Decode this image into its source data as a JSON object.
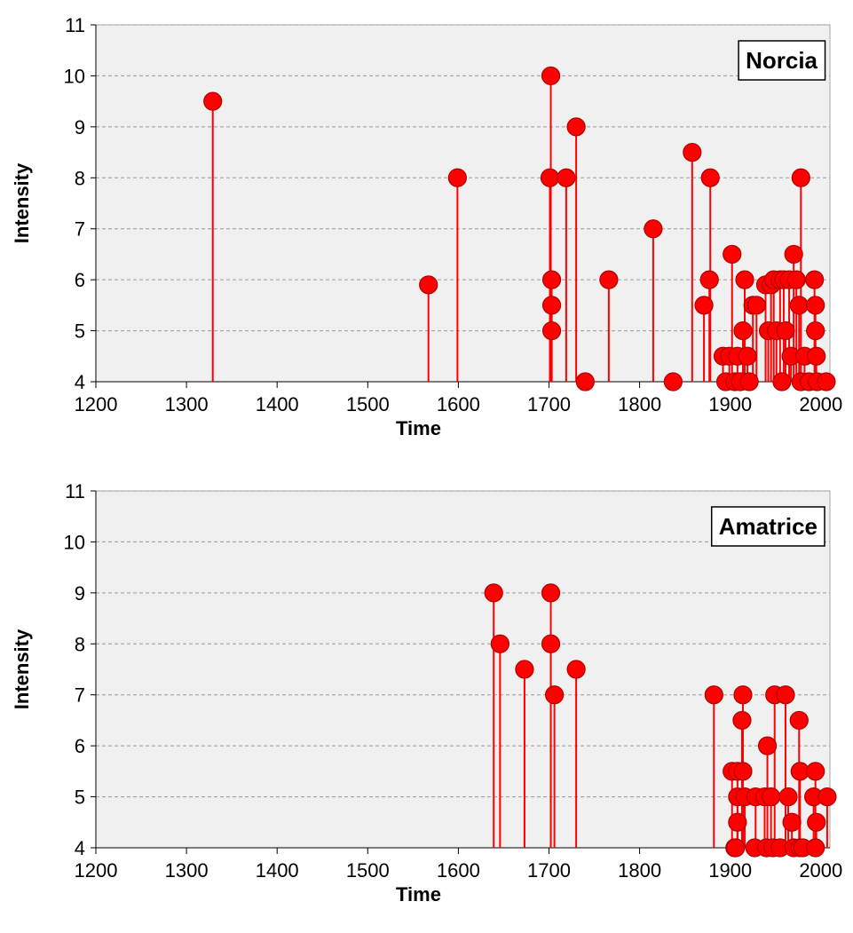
{
  "chart_data": [
    {
      "type": "stem",
      "title": "Norcia",
      "x_label": "Time",
      "y_label": "Intensity",
      "color": "#ff0000",
      "x": [
        1329,
        1567,
        1599,
        1702,
        1701,
        1703,
        1703,
        1703,
        1719,
        1730,
        1740,
        1766,
        1815,
        1837,
        1858,
        1871,
        1877,
        1878,
        1892,
        1895,
        1899,
        1902,
        1905,
        1908,
        1911,
        1914,
        1916,
        1919,
        1921,
        1925,
        1929,
        1939,
        1942,
        1945,
        1948,
        1951,
        1955,
        1957,
        1959,
        1961,
        1965,
        1967,
        1970,
        1973,
        1976,
        1978,
        1978,
        1982,
        1987,
        1993,
        1994,
        1994,
        1995,
        1996,
        2006
      ],
      "values": [
        9.5,
        5.9,
        8,
        10,
        8,
        6,
        5.5,
        5,
        8,
        9,
        4,
        6,
        7,
        4,
        8.5,
        5.5,
        6,
        8,
        4.5,
        4,
        4.5,
        6.5,
        4,
        4.5,
        4,
        5,
        6,
        4.5,
        4,
        5.5,
        5.5,
        5.9,
        5,
        5.9,
        6,
        5,
        6,
        4,
        6,
        5,
        6,
        4.5,
        6.5,
        6,
        5.5,
        8,
        4,
        4.5,
        4,
        6,
        5.5,
        5,
        4.5,
        4,
        4
      ],
      "xlim": [
        1200,
        2010
      ],
      "ylim": [
        4,
        11
      ],
      "xticks": [
        1200,
        1300,
        1400,
        1500,
        1600,
        1700,
        1800,
        1900,
        2000
      ],
      "yticks": [
        4,
        5,
        6,
        7,
        8,
        9,
        10,
        11
      ],
      "grid": true
    },
    {
      "type": "stem",
      "title": "Amatrice",
      "x_label": "Time",
      "y_label": "Intensity",
      "color": "#ff0000",
      "x": [
        1639,
        1646,
        1673,
        1702,
        1702,
        1706,
        1730,
        1882,
        1902,
        1905,
        1908,
        1908,
        1908,
        1906,
        1914,
        1913,
        1914,
        1916,
        1927,
        1928,
        1938,
        1940,
        1941,
        1945,
        1947,
        1949,
        1955,
        1961,
        1964,
        1968,
        1970,
        1976,
        1977,
        1977,
        1980,
        1994,
        1992,
        1995,
        1994,
        2007
      ],
      "values": [
        9,
        8,
        7.5,
        9,
        8,
        7,
        7.5,
        7,
        5.5,
        4,
        5.5,
        5,
        4.5,
        4,
        7,
        6.5,
        5.5,
        5,
        4,
        5,
        5,
        4,
        6,
        5,
        4,
        7,
        4,
        7,
        5,
        4.5,
        4,
        6.5,
        5.5,
        4,
        4,
        5.5,
        5,
        4.5,
        4,
        5
      ],
      "xlim": [
        1200,
        2010
      ],
      "ylim": [
        4,
        11
      ],
      "xticks": [
        1200,
        1300,
        1400,
        1500,
        1600,
        1700,
        1800,
        1900,
        2000
      ],
      "yticks": [
        4,
        5,
        6,
        7,
        8,
        9,
        10,
        11
      ],
      "grid": true
    }
  ]
}
